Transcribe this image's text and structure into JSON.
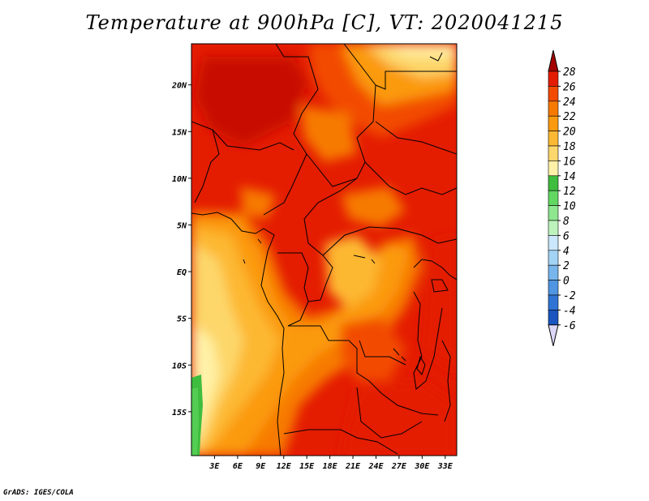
{
  "title": "Temperature at 900hPa [C], VT: 2020041215",
  "credit": "GrADS: IGES/COLA",
  "map": {
    "lat_labels": [
      "20N",
      "15N",
      "10N",
      "5N",
      "EQ",
      "5S",
      "10S",
      "15S"
    ],
    "lat_values": [
      20,
      15,
      10,
      5,
      0,
      -5,
      -10,
      -15
    ],
    "lon_labels": [
      "3E",
      "6E",
      "9E",
      "12E",
      "15E",
      "18E",
      "21E",
      "24E",
      "27E",
      "30E",
      "33E"
    ],
    "lon_values": [
      3,
      6,
      9,
      12,
      15,
      18,
      21,
      24,
      27,
      30,
      33
    ],
    "lat_range": [
      -19.7,
      24.4
    ],
    "lon_range": [
      0,
      34.5
    ]
  },
  "colorbar": {
    "labels": [
      "28",
      "26",
      "24",
      "22",
      "20",
      "18",
      "16",
      "14",
      "12",
      "10",
      "8",
      "6",
      "4",
      "2",
      "0",
      "-2",
      "-4",
      "-6"
    ],
    "colors": [
      "#a50000",
      "#e41c00",
      "#f24b00",
      "#f77a00",
      "#fb9a0e",
      "#fdb833",
      "#fdd76b",
      "#fff2a8",
      "#3ebd3e",
      "#62d862",
      "#8ee68e",
      "#bdf2bd",
      "#cbe7fb",
      "#a2d3f4",
      "#77b5ec",
      "#4f95e2",
      "#2f74d4",
      "#1a55c0",
      "#0f3aa5",
      "#08208a",
      "#05106a"
    ]
  }
}
